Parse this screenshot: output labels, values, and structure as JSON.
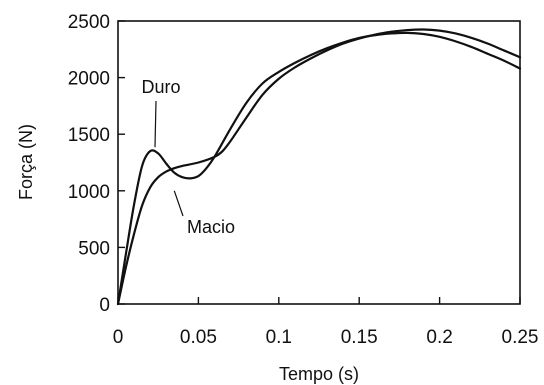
{
  "chart_data": {
    "type": "line",
    "xlabel": "Tempo (s)",
    "ylabel": "Força (N)",
    "xlim": [
      0,
      0.25
    ],
    "ylim": [
      0,
      2500
    ],
    "x_ticks": [
      0,
      0.05,
      0.1,
      0.15,
      0.2,
      0.25
    ],
    "x_tick_labels": [
      "0",
      "0.05",
      "0.1",
      "0.15",
      "0.2",
      "0.25"
    ],
    "y_ticks": [
      0,
      500,
      1000,
      1500,
      2000,
      2500
    ],
    "y_tick_labels": [
      "0",
      "500",
      "1000",
      "1500",
      "2000",
      "2500"
    ],
    "grid": false,
    "series": [
      {
        "name": "Duro",
        "x": [
          0,
          0.005,
          0.01,
          0.015,
          0.02,
          0.025,
          0.03,
          0.035,
          0.04,
          0.045,
          0.05,
          0.055,
          0.06,
          0.07,
          0.08,
          0.09,
          0.1,
          0.11,
          0.12,
          0.13,
          0.14,
          0.15,
          0.16,
          0.17,
          0.18,
          0.19,
          0.2,
          0.21,
          0.22,
          0.23,
          0.24,
          0.25
        ],
        "y": [
          0,
          450,
          880,
          1220,
          1350,
          1330,
          1240,
          1160,
          1120,
          1110,
          1130,
          1200,
          1300,
          1550,
          1780,
          1950,
          2050,
          2130,
          2200,
          2260,
          2310,
          2350,
          2375,
          2390,
          2395,
          2385,
          2360,
          2320,
          2270,
          2210,
          2150,
          2080
        ]
      },
      {
        "name": "Macio",
        "x": [
          0,
          0.005,
          0.01,
          0.015,
          0.02,
          0.025,
          0.03,
          0.035,
          0.04,
          0.05,
          0.06,
          0.065,
          0.07,
          0.08,
          0.09,
          0.1,
          0.11,
          0.12,
          0.13,
          0.14,
          0.15,
          0.16,
          0.17,
          0.18,
          0.19,
          0.2,
          0.21,
          0.22,
          0.23,
          0.24,
          0.25
        ],
        "y": [
          0,
          330,
          620,
          870,
          1030,
          1120,
          1170,
          1200,
          1220,
          1250,
          1300,
          1350,
          1440,
          1650,
          1850,
          1990,
          2090,
          2170,
          2240,
          2300,
          2345,
          2380,
          2405,
          2420,
          2425,
          2415,
          2390,
          2350,
          2300,
          2240,
          2180
        ]
      }
    ],
    "annotations": [
      {
        "text": "Duro",
        "series": "Duro",
        "x": 0.023,
        "y": 1350
      },
      {
        "text": "Macio",
        "series": "Macio",
        "x": 0.035,
        "y": 1000
      }
    ]
  }
}
